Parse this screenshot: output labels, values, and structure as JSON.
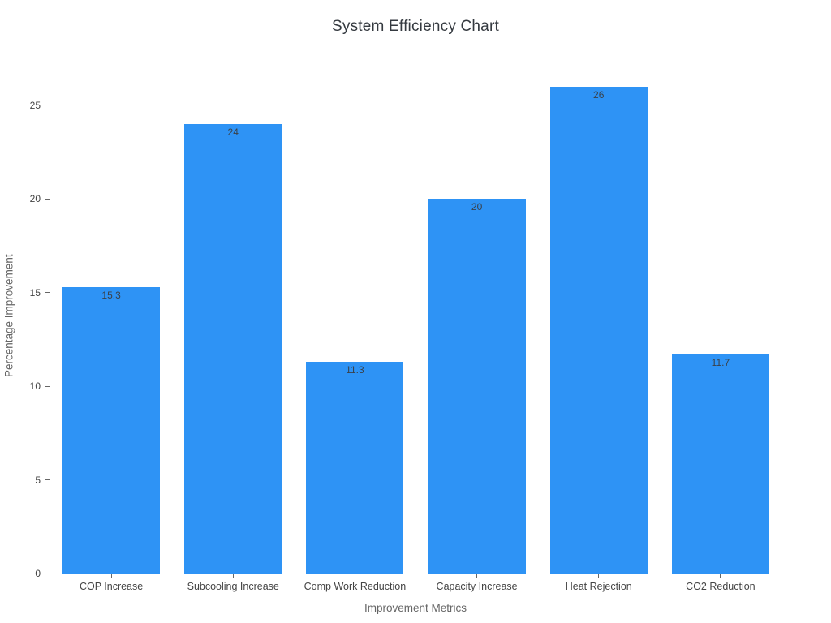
{
  "chart_data": {
    "type": "bar",
    "title": "System Efficiency Chart",
    "xlabel": "Improvement Metrics",
    "ylabel": "Percentage Improvement",
    "categories": [
      "COP Increase",
      "Subcooling Increase",
      "Comp Work Reduction",
      "Capacity Increase",
      "Heat Rejection",
      "CO2 Reduction"
    ],
    "values": [
      15.3,
      24,
      11.3,
      20,
      26,
      11.7
    ],
    "bar_labels": [
      "15.3",
      "24",
      "11.3",
      "20",
      "26",
      "11.7"
    ],
    "yticks": [
      0,
      5,
      10,
      15,
      20,
      25
    ],
    "ylim": [
      0,
      27.5
    ],
    "bar_gap_fraction": 0.2,
    "grid": false,
    "legend_position": "none",
    "colors": {
      "bar_fill": "#2E93F5",
      "bar_label_text": "#3A4149",
      "tick_label": "#444444",
      "axis_title": "#666666",
      "axis_line": "#E3E3E3",
      "tick_mark": "#666666",
      "title_text": "#353A40",
      "background": "#FFFFFF"
    }
  }
}
